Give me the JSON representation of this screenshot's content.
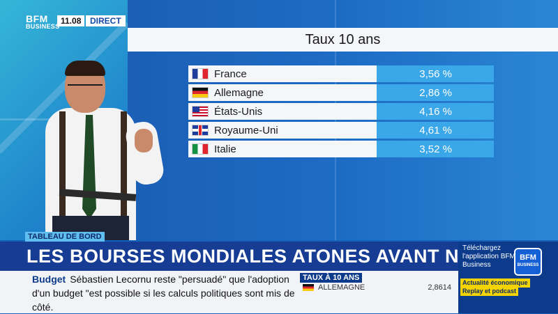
{
  "brand": {
    "logo_line1": "BFM",
    "logo_line2": "BUSINESS",
    "time": "11.08",
    "live_label": "DIRECT"
  },
  "panel": {
    "title": "Taux 10 ans",
    "rows": [
      {
        "country": "France",
        "value": "3,56 %",
        "flag": "fr"
      },
      {
        "country": "Allemagne",
        "value": "2,86 %",
        "flag": "de"
      },
      {
        "country": "États-Unis",
        "value": "4,16 %",
        "flag": "us"
      },
      {
        "country": "Royaume-Uni",
        "value": "4,61 %",
        "flag": "uk"
      },
      {
        "country": "Italie",
        "value": "3,52 %",
        "flag": "it"
      }
    ]
  },
  "lower_third": {
    "tag": "TABLEAU DE BORD",
    "headline": "LES BOURSES MONDIALES ATONES AVANT NOËL"
  },
  "ticker": {
    "label": "Budget",
    "text": "Sébastien Lecornu reste \"persuadé\" que l'adoption d'un budget \"est possible si les calculs politiques sont mis de côté."
  },
  "mini_panel": {
    "title": "TAUX À 10 ANS",
    "country": "ALLEMAGNE",
    "value": "2,8614"
  },
  "ad": {
    "text": "Téléchargez l'application BFM Business",
    "logo_line1": "BFM",
    "logo_line2": "BUSINESS",
    "badge1": "Actualité économique",
    "badge2": "Replay et podcast"
  }
}
